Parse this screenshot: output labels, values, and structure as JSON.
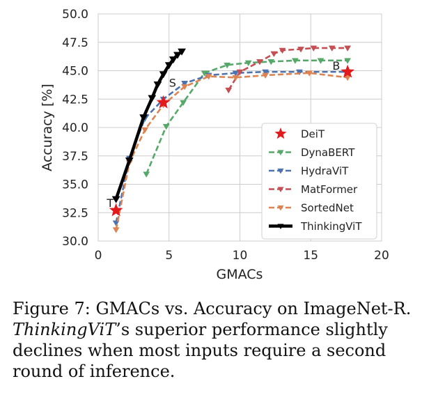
{
  "chart_data": {
    "type": "line",
    "title": "",
    "xlabel": "GMACs",
    "ylabel": "Accuracy [%]",
    "xlim": [
      0,
      20
    ],
    "ylim": [
      30.0,
      50.0
    ],
    "xticks": [
      0,
      5,
      10,
      15,
      20
    ],
    "xtick_labels": [
      "0",
      "5",
      "10",
      "15",
      "20"
    ],
    "yticks": [
      30.0,
      32.5,
      35.0,
      37.5,
      40.0,
      42.5,
      45.0,
      47.5,
      50.0
    ],
    "ytick_labels": [
      "30.0",
      "32.5",
      "35.0",
      "37.5",
      "40.0",
      "42.5",
      "45.0",
      "47.5",
      "50.0"
    ],
    "grid": true,
    "legend_position": "center-right",
    "series": [
      {
        "name": "DeiT",
        "color": "#e31a1c",
        "style": "markers",
        "marker": "star",
        "x": [
          1.26,
          4.6,
          17.6
        ],
        "y": [
          32.7,
          42.2,
          44.9
        ]
      },
      {
        "name": "DynaBERT",
        "color": "#55a868",
        "style": "dashed",
        "marker": "triangle-down",
        "x": [
          3.4,
          4.8,
          6.0,
          7.5,
          9.1,
          10.6,
          12.2,
          13.9,
          15.7,
          17.6
        ],
        "y": [
          35.9,
          40.1,
          42.2,
          44.8,
          45.5,
          45.7,
          45.8,
          45.9,
          45.9,
          45.9
        ]
      },
      {
        "name": "HydraViT",
        "color": "#4c72b0",
        "style": "dashed",
        "marker": "triangle-down",
        "x": [
          1.26,
          2.2,
          3.3,
          4.6,
          6.1,
          7.8,
          9.7,
          11.8,
          14.2,
          17.6
        ],
        "y": [
          31.6,
          37.3,
          40.8,
          42.5,
          43.9,
          44.6,
          44.8,
          44.9,
          44.9,
          44.9
        ]
      },
      {
        "name": "MatFormer",
        "color": "#c44e52",
        "style": "dashed",
        "marker": "triangle-down",
        "x": [
          9.2,
          10.0,
          11.4,
          12.4,
          13.0,
          14.3,
          15.2,
          16.5,
          17.6
        ],
        "y": [
          43.3,
          44.9,
          45.8,
          46.5,
          46.8,
          46.9,
          47.0,
          47.0,
          47.0
        ]
      },
      {
        "name": "SortedNet",
        "color": "#dd8452",
        "style": "dashed",
        "marker": "triangle-down",
        "x": [
          1.26,
          2.2,
          3.3,
          4.6,
          6.1,
          7.8,
          9.7,
          11.8,
          14.9,
          17.6
        ],
        "y": [
          31.0,
          36.9,
          39.8,
          42.0,
          43.6,
          44.5,
          44.4,
          44.6,
          44.8,
          44.4
        ]
      },
      {
        "name": "ThinkingViT",
        "color": "#000000",
        "style": "solid-thick",
        "marker": "triangle-down",
        "x": [
          1.26,
          2.2,
          3.2,
          3.8,
          4.2,
          4.6,
          5.0,
          5.3,
          5.6,
          5.9
        ],
        "y": [
          33.7,
          37.1,
          40.9,
          42.6,
          43.8,
          44.7,
          45.5,
          46.0,
          46.4,
          46.7
        ]
      }
    ],
    "annotations": [
      {
        "text": "T",
        "x": 0.85,
        "y": 33.0
      },
      {
        "text": "S",
        "x": 5.25,
        "y": 43.6
      },
      {
        "text": "B",
        "x": 16.8,
        "y": 45.1
      }
    ]
  },
  "caption": {
    "prefix": "Figure 7: GMACs vs.  Accuracy on ImageNet-R. ",
    "emphasis": "ThinkingViT",
    "suffix": "’s superior performance slightly declines when most inputs require a second round of inference."
  }
}
